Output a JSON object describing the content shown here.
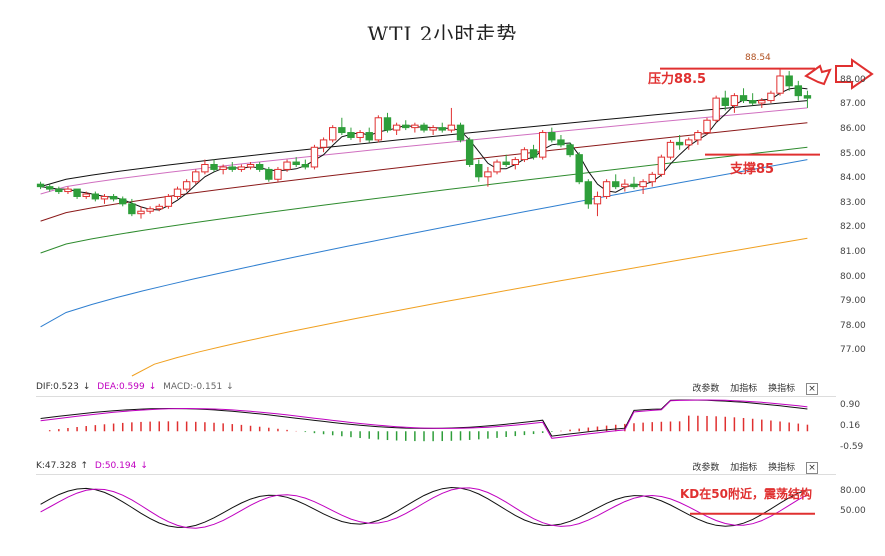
{
  "title": "WTI 2小时走势",
  "colors": {
    "up": "#e03030",
    "down": "#2e9e3a",
    "ma_fast": "#111111",
    "ma_pink": "#d070c0",
    "ma_red": "#8b1a1a",
    "ma_green": "#2e8b2e",
    "ma_blue": "#2f7fd0",
    "ma_orange": "#f0a020",
    "annotation": "#e03030"
  },
  "main_axis": {
    "ticks": [
      "88.00",
      "87.00",
      "86.00",
      "85.00",
      "84.00",
      "83.00",
      "82.00",
      "81.00",
      "80.00",
      "79.00",
      "78.00",
      "77.00"
    ]
  },
  "macd_header": {
    "dif": "DIF:0.523",
    "dea": "DEA:0.599",
    "macd": "MACD:-0.151"
  },
  "kd_header": {
    "k": "K:47.328",
    "d": "D:50.194"
  },
  "toolbar": {
    "params": "改参数",
    "add": "加指标",
    "switch": "换指标",
    "close": "×"
  },
  "macd_axis": {
    "ticks": [
      "0.90",
      "0.16",
      "-0.59"
    ]
  },
  "kd_axis": {
    "ticks": [
      "80.00",
      "50.00"
    ]
  },
  "annotations": {
    "high_price": "88.54",
    "resistance": "压力88.5",
    "support": "支撑85",
    "kd_note": "KD在50附近，震荡结构"
  },
  "chart_data": {
    "type": "candlestick",
    "title": "WTI 2小时走势",
    "ylim": [
      76.0,
      89.5
    ],
    "candles": [
      [
        83.8,
        83.9,
        83.6,
        83.7
      ],
      [
        83.7,
        83.8,
        83.5,
        83.6
      ],
      [
        83.6,
        83.7,
        83.4,
        83.5
      ],
      [
        83.5,
        83.7,
        83.4,
        83.6
      ],
      [
        83.6,
        83.6,
        83.2,
        83.3
      ],
      [
        83.3,
        83.5,
        83.2,
        83.4
      ],
      [
        83.4,
        83.5,
        83.1,
        83.2
      ],
      [
        83.2,
        83.4,
        83.0,
        83.3
      ],
      [
        83.3,
        83.4,
        83.1,
        83.2
      ],
      [
        83.2,
        83.3,
        82.9,
        83.0
      ],
      [
        83.0,
        83.2,
        82.5,
        82.6
      ],
      [
        82.6,
        82.9,
        82.4,
        82.7
      ],
      [
        82.7,
        82.9,
        82.6,
        82.8
      ],
      [
        82.8,
        83.0,
        82.7,
        82.9
      ],
      [
        82.9,
        83.4,
        82.8,
        83.3
      ],
      [
        83.3,
        83.7,
        83.2,
        83.6
      ],
      [
        83.6,
        84.0,
        83.5,
        83.9
      ],
      [
        83.9,
        84.4,
        83.8,
        84.3
      ],
      [
        84.3,
        84.8,
        84.2,
        84.6
      ],
      [
        84.6,
        84.8,
        84.3,
        84.4
      ],
      [
        84.4,
        84.6,
        84.2,
        84.5
      ],
      [
        84.5,
        84.7,
        84.3,
        84.4
      ],
      [
        84.4,
        84.6,
        84.3,
        84.5
      ],
      [
        84.5,
        84.7,
        84.4,
        84.6
      ],
      [
        84.6,
        84.7,
        84.3,
        84.4
      ],
      [
        84.4,
        84.5,
        83.9,
        84.0
      ],
      [
        84.0,
        84.5,
        83.9,
        84.4
      ],
      [
        84.4,
        84.8,
        84.3,
        84.7
      ],
      [
        84.7,
        84.9,
        84.5,
        84.6
      ],
      [
        84.6,
        84.8,
        84.4,
        84.5
      ],
      [
        84.5,
        85.4,
        84.4,
        85.3
      ],
      [
        85.3,
        85.7,
        85.1,
        85.6
      ],
      [
        85.6,
        86.2,
        85.5,
        86.1
      ],
      [
        86.1,
        86.5,
        85.8,
        85.9
      ],
      [
        85.9,
        86.1,
        85.6,
        85.7
      ],
      [
        85.7,
        86.0,
        85.5,
        85.9
      ],
      [
        85.9,
        86.1,
        85.5,
        85.6
      ],
      [
        85.6,
        86.6,
        85.5,
        86.5
      ],
      [
        86.5,
        86.7,
        85.9,
        86.0
      ],
      [
        86.0,
        86.3,
        85.8,
        86.2
      ],
      [
        86.2,
        86.4,
        86.0,
        86.1
      ],
      [
        86.1,
        86.3,
        85.9,
        86.2
      ],
      [
        86.2,
        86.3,
        85.9,
        86.0
      ],
      [
        86.0,
        86.2,
        85.8,
        86.1
      ],
      [
        86.1,
        86.3,
        85.9,
        86.0
      ],
      [
        86.0,
        86.9,
        85.9,
        86.2
      ],
      [
        86.2,
        86.3,
        85.5,
        85.6
      ],
      [
        85.6,
        85.7,
        84.5,
        84.6
      ],
      [
        84.6,
        84.8,
        83.9,
        84.1
      ],
      [
        84.1,
        84.5,
        83.7,
        84.3
      ],
      [
        84.3,
        84.8,
        84.2,
        84.7
      ],
      [
        84.7,
        85.0,
        84.5,
        84.6
      ],
      [
        84.6,
        84.9,
        84.4,
        84.8
      ],
      [
        84.8,
        85.3,
        84.7,
        85.2
      ],
      [
        85.2,
        85.4,
        84.8,
        84.9
      ],
      [
        84.9,
        86.0,
        84.8,
        85.9
      ],
      [
        85.9,
        86.1,
        85.5,
        85.6
      ],
      [
        85.6,
        85.8,
        85.3,
        85.4
      ],
      [
        85.4,
        85.5,
        84.9,
        85.0
      ],
      [
        85.0,
        85.1,
        83.8,
        83.9
      ],
      [
        83.9,
        84.0,
        82.8,
        83.0
      ],
      [
        83.0,
        83.5,
        82.5,
        83.3
      ],
      [
        83.3,
        84.0,
        83.2,
        83.9
      ],
      [
        83.9,
        84.2,
        83.6,
        83.7
      ],
      [
        83.7,
        84.0,
        83.5,
        83.8
      ],
      [
        83.8,
        84.1,
        83.6,
        83.7
      ],
      [
        83.7,
        84.0,
        83.4,
        83.9
      ],
      [
        83.9,
        84.3,
        83.7,
        84.2
      ],
      [
        84.2,
        85.0,
        84.1,
        84.9
      ],
      [
        84.9,
        85.6,
        84.8,
        85.5
      ],
      [
        85.5,
        85.8,
        85.2,
        85.4
      ],
      [
        85.4,
        85.7,
        85.2,
        85.6
      ],
      [
        85.6,
        86.0,
        85.4,
        85.9
      ],
      [
        85.9,
        86.5,
        85.8,
        86.4
      ],
      [
        86.4,
        87.4,
        86.3,
        87.3
      ],
      [
        87.3,
        87.6,
        86.8,
        87.0
      ],
      [
        87.0,
        87.5,
        86.7,
        87.4
      ],
      [
        87.4,
        87.7,
        87.1,
        87.2
      ],
      [
        87.2,
        87.5,
        87.0,
        87.1
      ],
      [
        87.1,
        87.3,
        86.9,
        87.2
      ],
      [
        87.2,
        87.6,
        87.1,
        87.5
      ],
      [
        87.5,
        88.5,
        87.4,
        88.2
      ],
      [
        88.2,
        88.4,
        87.6,
        87.8
      ],
      [
        87.8,
        88.0,
        87.2,
        87.4
      ],
      [
        87.4,
        87.6,
        86.9,
        87.3
      ]
    ],
    "ma_series": [
      {
        "key": "ma_fast",
        "start": [
          0,
          83.7
        ],
        "end": [
          84,
          87.2
        ]
      },
      {
        "key": "ma_pink",
        "start": [
          0,
          83.4
        ],
        "end": [
          84,
          86.9
        ]
      },
      {
        "key": "ma_red",
        "start": [
          0,
          82.3
        ],
        "end": [
          84,
          86.3
        ]
      },
      {
        "key": "ma_green",
        "start": [
          0,
          81.0
        ],
        "end": [
          84,
          85.3
        ]
      },
      {
        "key": "ma_blue",
        "start": [
          0,
          78.0
        ],
        "end": [
          84,
          84.8
        ]
      },
      {
        "key": "ma_orange",
        "start": [
          10,
          76.0
        ],
        "end": [
          84,
          81.6
        ]
      }
    ],
    "resistance": 88.5,
    "support": 85.0,
    "macd": {
      "ylim": [
        -0.8,
        1.1
      ]
    },
    "kd": {
      "ylim": [
        20,
        100
      ],
      "reference": 50
    }
  }
}
